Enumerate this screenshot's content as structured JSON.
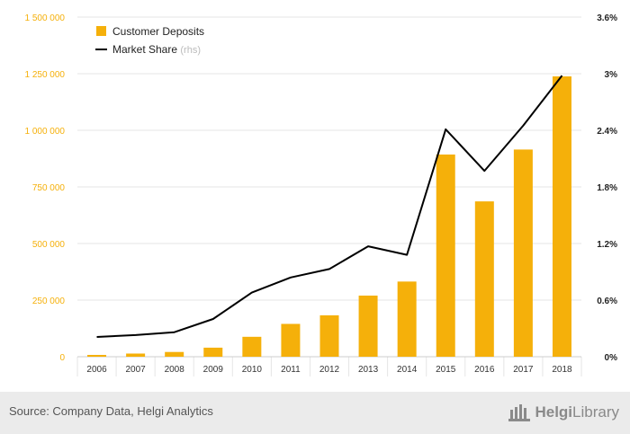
{
  "colors": {
    "bar": "#f5b00a",
    "line": "#000000",
    "left_axis_text": "#f5b00a",
    "right_axis_text": "#222222",
    "grid": "#e6e6e6",
    "footer_bg": "#ebebeb"
  },
  "footer": {
    "source": "Source: Company Data, Helgi Analytics",
    "logo_icon": "helgi-building-icon",
    "logo_prefix": "Helgi",
    "logo_suffix": "Library"
  },
  "chart_data": {
    "type": "bar",
    "categories": [
      "2006",
      "2007",
      "2008",
      "2009",
      "2010",
      "2011",
      "2012",
      "2013",
      "2014",
      "2015",
      "2016",
      "2017",
      "2018"
    ],
    "series": [
      {
        "name": "Customer Deposits",
        "type": "bar",
        "axis": "left",
        "values": [
          8000,
          14000,
          21000,
          40000,
          88000,
          145000,
          183000,
          270000,
          332000,
          893000,
          686000,
          915000,
          1238000
        ]
      },
      {
        "name": "Market Share",
        "legend_suffix": "(rhs)",
        "type": "line",
        "axis": "right",
        "values": [
          0.21,
          0.23,
          0.26,
          0.4,
          0.68,
          0.84,
          0.93,
          1.17,
          1.08,
          2.41,
          1.97,
          2.45,
          2.98
        ]
      }
    ],
    "y_left": {
      "min": 0,
      "max": 1500000,
      "ticks": [
        0,
        250000,
        500000,
        750000,
        1000000,
        1250000,
        1500000
      ],
      "tick_labels": [
        "0",
        "250 000",
        "500 000",
        "750 000",
        "1 000 000",
        "1 250 000",
        "1 500 000"
      ]
    },
    "y_right": {
      "min": 0,
      "max": 3.6,
      "ticks": [
        0,
        0.6,
        1.2,
        1.8,
        2.4,
        3.0,
        3.6
      ],
      "tick_labels": [
        "0%",
        "0.6%",
        "1.2%",
        "1.8%",
        "2.4%",
        "3%",
        "3.6%"
      ]
    },
    "grid": true,
    "legend_position": "top-left"
  }
}
